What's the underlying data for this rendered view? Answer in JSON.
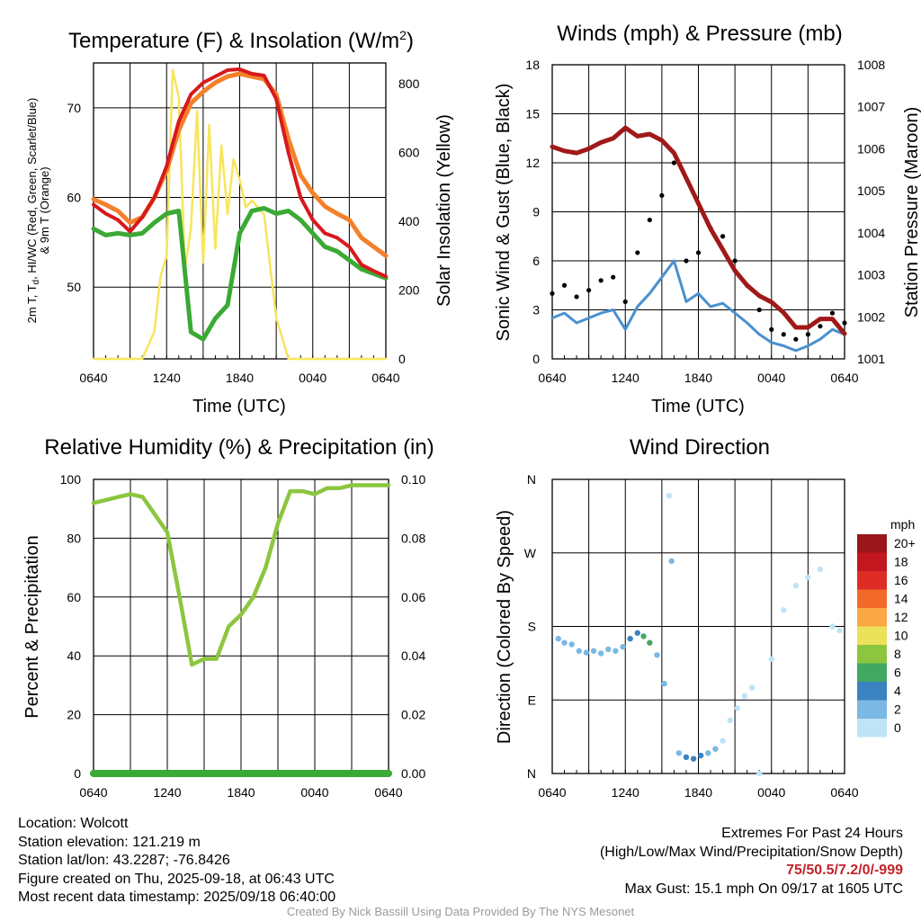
{
  "colors": {
    "temp_2m": "#d7191c",
    "dewpoint": "#3aaa35",
    "wind_chill": "#4daf4a",
    "temp_9m": "#f4802a",
    "insolation": "#f7e55c",
    "sonic_wind": "#4a90d0",
    "gust": "#000000",
    "pressure": "#a01919",
    "rh": "#8cc63f",
    "precip": "#3aaa35"
  },
  "panels": {
    "temperature": {
      "title_prefix": "Temperature (F) & Insolation (W/m",
      "title_sup": "2",
      "title_suffix": ")",
      "ylabel_left_line1_a": "2m T, T",
      "ylabel_left_line1_sub": "d",
      "ylabel_left_line1_b": ", HI/WC (Red, Green, Scarlet/Blue)",
      "ylabel_left_line2": "& 9m T (Orange)",
      "ylabel_right": "Solar Insolation (Yellow)",
      "xlabel": "Time (UTC)"
    },
    "winds": {
      "title": "Winds (mph) & Pressure (mb)",
      "ylabel_left": "Sonic Wind & Gust (Blue, Black)",
      "ylabel_right": "Station Pressure (Maroon)",
      "xlabel": "Time (UTC)"
    },
    "humidity": {
      "title": "Relative Humidity (%) & Precipitation (in)",
      "ylabel_left": "Percent & Precipitation"
    },
    "direction": {
      "title": "Wind Direction",
      "ylabel_left": "Direction (Colored By Speed)",
      "legend_title": "mph",
      "legend": [
        {
          "label": "20+",
          "color": "#99161b"
        },
        {
          "label": "18",
          "color": "#c2171f"
        },
        {
          "label": "16",
          "color": "#de2d26"
        },
        {
          "label": "14",
          "color": "#f26a2a"
        },
        {
          "label": "12",
          "color": "#fca745"
        },
        {
          "label": "10",
          "color": "#ece15a"
        },
        {
          "label": "8",
          "color": "#8cc63f"
        },
        {
          "label": "6",
          "color": "#41a862"
        },
        {
          "label": "4",
          "color": "#3a82c0"
        },
        {
          "label": "2",
          "color": "#7bb8e3"
        },
        {
          "label": "0",
          "color": "#bfe3f7"
        }
      ]
    }
  },
  "chart_data": [
    {
      "type": "line",
      "title": "Temperature (F) & Insolation (W/m2)",
      "xlabel": "Time (UTC)",
      "x_ticks": [
        "0640",
        "1240",
        "1840",
        "0040",
        "0640"
      ],
      "ylim": [
        42,
        75
      ],
      "y_ticks": [
        50,
        60,
        70
      ],
      "y2lim": [
        0,
        860
      ],
      "y2_ticks": [
        0,
        200,
        400,
        600,
        800
      ],
      "series": [
        {
          "name": "2m T",
          "axis": "left",
          "x": [
            0,
            1,
            2,
            3,
            4,
            5,
            6,
            7,
            8,
            9,
            10,
            11,
            12,
            13,
            14,
            15,
            16,
            17,
            18,
            19,
            20,
            21,
            22,
            23,
            24
          ],
          "values": [
            59.2,
            58.2,
            57.5,
            56.2,
            57.8,
            60,
            63.5,
            68.5,
            71.5,
            72.8,
            73.5,
            74.2,
            74.3,
            73.8,
            73.6,
            71,
            65,
            60,
            57.5,
            56,
            55.5,
            54.5,
            52.5,
            51.8,
            51.2
          ]
        },
        {
          "name": "9m T",
          "axis": "left",
          "x": [
            0,
            1,
            2,
            3,
            4,
            5,
            6,
            7,
            8,
            9,
            10,
            11,
            12,
            13,
            14,
            15,
            16,
            17,
            18,
            19,
            20,
            21,
            22,
            23,
            24
          ],
          "values": [
            59.8,
            59.2,
            58.5,
            57.2,
            57.8,
            60,
            63,
            67.5,
            70.5,
            71.8,
            72.8,
            73.5,
            73.8,
            73.5,
            73.2,
            71.5,
            66.5,
            62.5,
            60.5,
            59,
            58.2,
            57.5,
            55.5,
            54.5,
            53.5
          ]
        },
        {
          "name": "T_d",
          "axis": "left",
          "x": [
            0,
            1,
            2,
            3,
            4,
            5,
            6,
            7,
            8,
            9,
            10,
            11,
            12,
            13,
            14,
            15,
            16,
            17,
            18,
            19,
            20,
            21,
            22,
            23,
            24
          ],
          "values": [
            56.5,
            55.8,
            56,
            55.8,
            56,
            57.2,
            58.2,
            58.5,
            45,
            44.2,
            46.5,
            48,
            56,
            58.5,
            58.8,
            58.2,
            58.5,
            57.5,
            56,
            54.5,
            54,
            53,
            52,
            51.5,
            51
          ]
        },
        {
          "name": "Solar Insolation",
          "axis": "right",
          "x": [
            0,
            1,
            2,
            3,
            4,
            5,
            5.5,
            6,
            6.5,
            7,
            7.5,
            8,
            8.5,
            9,
            9.5,
            10,
            10.5,
            11,
            11.5,
            12,
            12.5,
            13,
            13.5,
            14,
            15,
            16,
            17,
            18,
            19,
            20,
            21,
            22,
            23,
            24
          ],
          "values": [
            0,
            0,
            0,
            0,
            0,
            80,
            240,
            300,
            840,
            760,
            260,
            380,
            720,
            280,
            680,
            320,
            620,
            420,
            580,
            520,
            440,
            460,
            440,
            420,
            120,
            0,
            0,
            0,
            0,
            0,
            0,
            0,
            0,
            0
          ]
        }
      ]
    },
    {
      "type": "line",
      "title": "Winds (mph) & Pressure (mb)",
      "xlabel": "Time (UTC)",
      "x_ticks": [
        "0640",
        "1240",
        "1840",
        "0040",
        "0640"
      ],
      "ylim": [
        0,
        18
      ],
      "y_ticks": [
        0,
        3,
        6,
        9,
        12,
        15,
        18
      ],
      "y2lim": [
        1001,
        1008
      ],
      "y2_ticks": [
        1001,
        1002,
        1003,
        1004,
        1005,
        1006,
        1007,
        1008
      ],
      "series": [
        {
          "name": "Sonic Wind",
          "axis": "left",
          "x": [
            0,
            1,
            2,
            3,
            4,
            5,
            6,
            7,
            8,
            9,
            10,
            11,
            12,
            13,
            14,
            15,
            16,
            17,
            18,
            19,
            20,
            21,
            22,
            23,
            24
          ],
          "values": [
            2.5,
            2.8,
            2.2,
            2.5,
            2.8,
            3,
            1.8,
            3.2,
            4,
            5,
            6,
            3.5,
            4,
            3.2,
            3.4,
            2.8,
            2.2,
            1.5,
            1,
            0.8,
            0.5,
            0.8,
            1.2,
            1.8,
            1.5
          ]
        },
        {
          "name": "Gust",
          "axis": "left",
          "x": [
            0,
            1,
            2,
            3,
            4,
            5,
            6,
            7,
            8,
            9,
            10,
            11,
            12,
            13,
            14,
            15,
            16,
            17,
            18,
            19,
            20,
            21,
            22,
            23,
            24
          ],
          "values": [
            4,
            4.5,
            3.8,
            4.2,
            4.8,
            5,
            3.5,
            6.5,
            8.5,
            10,
            12,
            6,
            6.5,
            8,
            7.5,
            6,
            4.5,
            3,
            1.8,
            1.5,
            1.2,
            1.5,
            2,
            2.8,
            2.2
          ]
        },
        {
          "name": "Station Pressure",
          "axis": "right",
          "x": [
            0,
            1,
            2,
            3,
            4,
            5,
            6,
            7,
            8,
            9,
            10,
            11,
            12,
            13,
            14,
            15,
            16,
            17,
            18,
            19,
            20,
            21,
            22,
            23,
            24
          ],
          "values": [
            1006.05,
            1005.95,
            1005.9,
            1006,
            1006.15,
            1006.25,
            1006.5,
            1006.3,
            1006.35,
            1006.2,
            1005.9,
            1005.3,
            1004.7,
            1004.1,
            1003.6,
            1003.1,
            1002.75,
            1002.5,
            1002.35,
            1002.1,
            1001.75,
            1001.75,
            1001.95,
            1001.95,
            1001.6
          ]
        }
      ]
    },
    {
      "type": "line",
      "title": "Relative Humidity (%) & Precipitation (in)",
      "x_ticks": [
        "0640",
        "1240",
        "1840",
        "0040",
        "0640"
      ],
      "ylim": [
        0,
        100
      ],
      "y_ticks": [
        0,
        20,
        40,
        60,
        80,
        100
      ],
      "y2lim": [
        0,
        0.1
      ],
      "y2_ticks": [
        "0.00",
        "0.02",
        "0.04",
        "0.06",
        "0.08",
        "0.10"
      ],
      "series": [
        {
          "name": "Relative Humidity",
          "axis": "left",
          "x": [
            0,
            1,
            2,
            3,
            4,
            5,
            6,
            7,
            8,
            9,
            10,
            11,
            12,
            13,
            14,
            15,
            16,
            17,
            18,
            19,
            20,
            21,
            22,
            23,
            24
          ],
          "values": [
            92,
            93,
            94,
            95,
            94,
            88,
            82,
            60,
            37,
            39,
            39,
            50,
            54,
            60,
            70,
            85,
            96,
            96,
            95,
            97,
            97,
            98,
            98,
            98,
            98
          ]
        },
        {
          "name": "Precipitation",
          "axis": "right",
          "x": [
            0,
            24
          ],
          "values": [
            0,
            0
          ]
        }
      ]
    },
    {
      "type": "scatter",
      "title": "Wind Direction",
      "x_ticks": [
        "0640",
        "1240",
        "1840",
        "0040",
        "0640"
      ],
      "y_ticks": [
        "N",
        "E",
        "S",
        "W",
        "N"
      ],
      "ylim": [
        0,
        360
      ],
      "points": [
        {
          "x": 0.5,
          "dir": 165,
          "speed": 2
        },
        {
          "x": 1.0,
          "dir": 160,
          "speed": 2
        },
        {
          "x": 1.6,
          "dir": 158,
          "speed": 2
        },
        {
          "x": 2.2,
          "dir": 150,
          "speed": 2
        },
        {
          "x": 2.8,
          "dir": 148,
          "speed": 3
        },
        {
          "x": 3.4,
          "dir": 150,
          "speed": 2
        },
        {
          "x": 4.0,
          "dir": 147,
          "speed": 2
        },
        {
          "x": 4.6,
          "dir": 152,
          "speed": 2
        },
        {
          "x": 5.2,
          "dir": 150,
          "speed": 2
        },
        {
          "x": 5.8,
          "dir": 155,
          "speed": 3
        },
        {
          "x": 6.4,
          "dir": 165,
          "speed": 4
        },
        {
          "x": 7.0,
          "dir": 172,
          "speed": 4
        },
        {
          "x": 7.5,
          "dir": 168,
          "speed": 6
        },
        {
          "x": 8.0,
          "dir": 160,
          "speed": 6
        },
        {
          "x": 8.6,
          "dir": 145,
          "speed": 3
        },
        {
          "x": 9.2,
          "dir": 110,
          "speed": 3
        },
        {
          "x": 9.6,
          "dir": 340,
          "speed": 1
        },
        {
          "x": 9.8,
          "dir": 260,
          "speed": 2
        },
        {
          "x": 10.4,
          "dir": 25,
          "speed": 3
        },
        {
          "x": 11.0,
          "dir": 20,
          "speed": 4
        },
        {
          "x": 11.6,
          "dir": 18,
          "speed": 4
        },
        {
          "x": 12.2,
          "dir": 22,
          "speed": 4
        },
        {
          "x": 12.8,
          "dir": 25,
          "speed": 3
        },
        {
          "x": 13.4,
          "dir": 30,
          "speed": 2
        },
        {
          "x": 14.0,
          "dir": 40,
          "speed": 1
        },
        {
          "x": 14.6,
          "dir": 65,
          "speed": 1
        },
        {
          "x": 15.2,
          "dir": 80,
          "speed": 1
        },
        {
          "x": 15.8,
          "dir": 95,
          "speed": 1
        },
        {
          "x": 16.4,
          "dir": 105,
          "speed": 1
        },
        {
          "x": 17.0,
          "dir": 0,
          "speed": 1
        },
        {
          "x": 18.0,
          "dir": 140,
          "speed": 1
        },
        {
          "x": 19.0,
          "dir": 200,
          "speed": 1
        },
        {
          "x": 20.0,
          "dir": 230,
          "speed": 1
        },
        {
          "x": 21.0,
          "dir": 240,
          "speed": 1
        },
        {
          "x": 22.0,
          "dir": 250,
          "speed": 1
        },
        {
          "x": 23.0,
          "dir": 180,
          "speed": 1
        },
        {
          "x": 23.6,
          "dir": 175,
          "speed": 1
        }
      ]
    }
  ],
  "info": {
    "location": "Location: Wolcott",
    "elevation": "Station elevation: 121.219 m",
    "latlon": "Station lat/lon: 43.2287; -76.8426",
    "created": "Figure created on Thu, 2025-09-18, at 06:43 UTC",
    "recent": "Most recent data timestamp: 2025/09/18 06:40:00"
  },
  "extremes": {
    "title": "Extremes For Past 24 Hours",
    "subtitle": "(High/Low/Max Wind/Precipitation/Snow Depth)",
    "values": "75/50.5/7.2/0/-999",
    "max_gust": "Max Gust: 15.1 mph On 09/17 at 1605 UTC"
  },
  "credit": "Created By Nick Bassill Using Data Provided By The NYS Mesonet"
}
